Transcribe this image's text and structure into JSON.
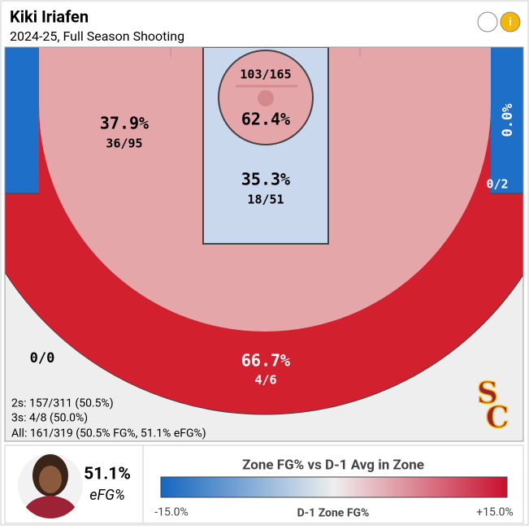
{
  "header": {
    "title": "Kiki Iriafen",
    "subtitle": "2024-25, Full Season Shooting"
  },
  "zones": {
    "restricted": {
      "attempts": "103/165",
      "pct": "62.4%"
    },
    "paint": {
      "pct": "35.3%",
      "attempts": "18/51"
    },
    "midrange": {
      "pct": "37.9%",
      "attempts": "36/95"
    },
    "right_corner": {
      "pct": "0.0%",
      "attempts": "0/2"
    },
    "left_corner": {
      "attempts": "0/0"
    },
    "above_break": {
      "pct": "66.7%",
      "attempts": "4/6"
    }
  },
  "summary": [
    "2s: 157/311 (50.5%)",
    "3s: 4/8 (50.0%)",
    "All: 161/319 (50.5% FG%, 51.1% eFG%)"
  ],
  "logo": {
    "top": "S",
    "bottom": "C"
  },
  "player": {
    "value": "51.1%",
    "label": "eFG%"
  },
  "legend": {
    "title": "Zone FG% vs D-1 Avg in Zone",
    "min": "-15.0%",
    "axis": "D-1 Zone FG%",
    "max": "+15.0%"
  }
}
